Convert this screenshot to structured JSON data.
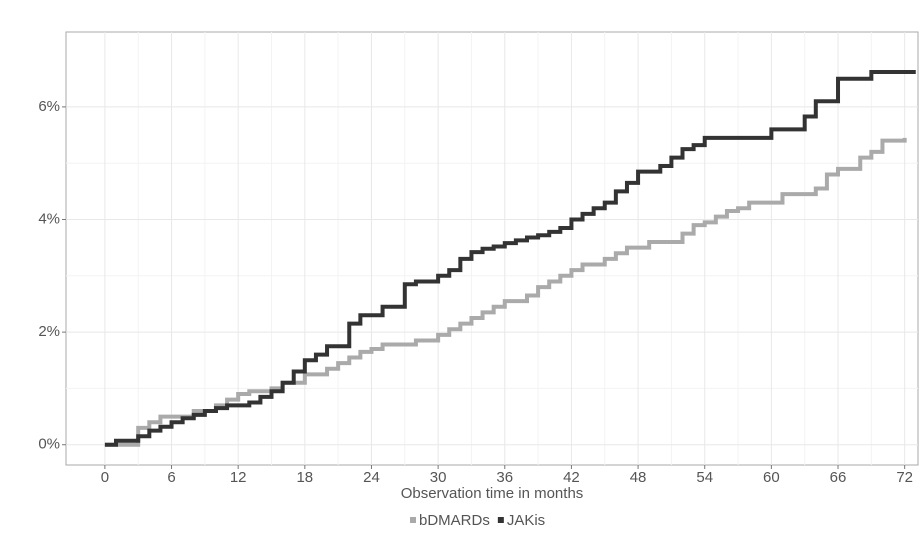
{
  "chart_data": {
    "type": "step",
    "x_label": "Observation time in months",
    "xlim": [
      -3.5,
      73.2
    ],
    "ylim": [
      -0.36,
      7.33
    ],
    "xticks": [
      0,
      6,
      12,
      18,
      24,
      30,
      36,
      42,
      48,
      54,
      60,
      66,
      72
    ],
    "yticks": [
      {
        "value": 0,
        "label": "0%"
      },
      {
        "value": 2,
        "label": "2%"
      },
      {
        "value": 4,
        "label": "4%"
      },
      {
        "value": 6,
        "label": "6%"
      }
    ],
    "grid": true,
    "minor_grid": true,
    "legend": "bottom",
    "series": [
      {
        "name": "bDMARDs",
        "color": "#aaaaaa",
        "x": [
          0,
          3,
          4,
          5,
          8,
          10,
          11,
          12,
          13,
          15,
          16,
          18,
          20,
          21,
          22,
          23,
          24,
          25,
          28,
          30,
          31,
          32,
          33,
          34,
          35,
          36,
          38,
          39,
          40,
          41,
          42,
          43,
          45,
          46,
          47,
          49,
          52,
          53,
          54,
          55,
          56,
          57,
          58,
          61,
          64,
          65,
          66,
          68,
          69,
          70,
          72
        ],
        "values": [
          0,
          0.3,
          0.4,
          0.5,
          0.6,
          0.7,
          0.8,
          0.9,
          0.95,
          1.0,
          1.1,
          1.25,
          1.35,
          1.45,
          1.55,
          1.65,
          1.7,
          1.78,
          1.85,
          1.95,
          2.05,
          2.15,
          2.25,
          2.35,
          2.45,
          2.55,
          2.65,
          2.8,
          2.9,
          3.0,
          3.1,
          3.2,
          3.3,
          3.4,
          3.5,
          3.6,
          3.75,
          3.9,
          3.95,
          4.05,
          4.15,
          4.2,
          4.3,
          4.45,
          4.55,
          4.8,
          4.9,
          5.1,
          5.2,
          5.4,
          5.45
        ]
      },
      {
        "name": "JAKis",
        "color": "#333333",
        "x": [
          0,
          1,
          3,
          4,
          5,
          6,
          7,
          8,
          9,
          10,
          11,
          13,
          14,
          15,
          16,
          17,
          18,
          19,
          20,
          22,
          23,
          25,
          27,
          28,
          30,
          31,
          32,
          33,
          34,
          35,
          36,
          37,
          38,
          39,
          40,
          41,
          42,
          43,
          44,
          45,
          46,
          47,
          48,
          50,
          51,
          52,
          53,
          54,
          60,
          63,
          64,
          66,
          69,
          73
        ],
        "values": [
          0,
          0.07,
          0.15,
          0.25,
          0.32,
          0.4,
          0.47,
          0.53,
          0.6,
          0.65,
          0.7,
          0.75,
          0.85,
          0.95,
          1.1,
          1.3,
          1.5,
          1.6,
          1.75,
          2.15,
          2.3,
          2.45,
          2.85,
          2.9,
          3.0,
          3.1,
          3.3,
          3.42,
          3.48,
          3.52,
          3.58,
          3.63,
          3.68,
          3.72,
          3.78,
          3.85,
          4.0,
          4.1,
          4.2,
          4.3,
          4.5,
          4.65,
          4.85,
          4.95,
          5.1,
          5.25,
          5.32,
          5.45,
          5.6,
          5.83,
          6.1,
          6.5,
          6.62,
          6.62
        ]
      }
    ]
  }
}
